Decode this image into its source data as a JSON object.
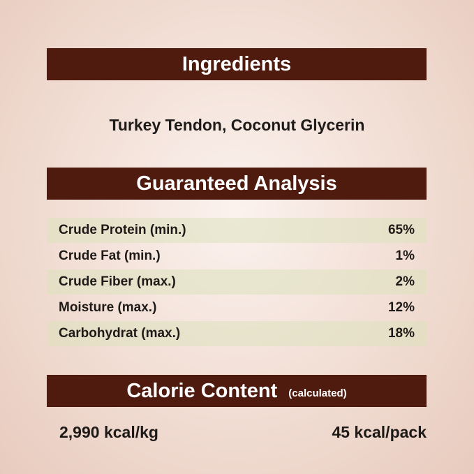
{
  "ingredients": {
    "title": "Ingredients",
    "text": "Turkey Tendon, Coconut Glycerin"
  },
  "analysis": {
    "title": "Guaranteed Analysis",
    "rows": [
      {
        "label": "Crude Protein (min.)",
        "value": "65%"
      },
      {
        "label": "Crude Fat (min.)",
        "value": "1%"
      },
      {
        "label": "Crude Fiber (max.)",
        "value": "2%"
      },
      {
        "label": "Moisture (max.)",
        "value": "12%"
      },
      {
        "label": "Carbohydrat (max.)",
        "value": "18%"
      }
    ]
  },
  "calorie": {
    "title": "Calorie Content",
    "note": "(calculated)",
    "per_kg": "2,990 kcal/kg",
    "per_pack": "45 kcal/pack"
  },
  "colors": {
    "banner": "#4f1b0f",
    "row_shade": "#e6e6c8"
  }
}
